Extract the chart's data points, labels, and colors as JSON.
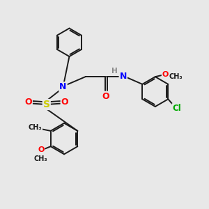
{
  "bg_color": "#e8e8e8",
  "bond_color": "#1a1a1a",
  "bond_width": 1.4,
  "atom_colors": {
    "N": "#0000ff",
    "O": "#ff0000",
    "S": "#cccc00",
    "Cl": "#00aa00",
    "H": "#888888",
    "C": "#1a1a1a"
  },
  "figsize": [
    3.0,
    3.0
  ],
  "dpi": 100,
  "xlim": [
    0,
    10
  ],
  "ylim": [
    0,
    10
  ]
}
